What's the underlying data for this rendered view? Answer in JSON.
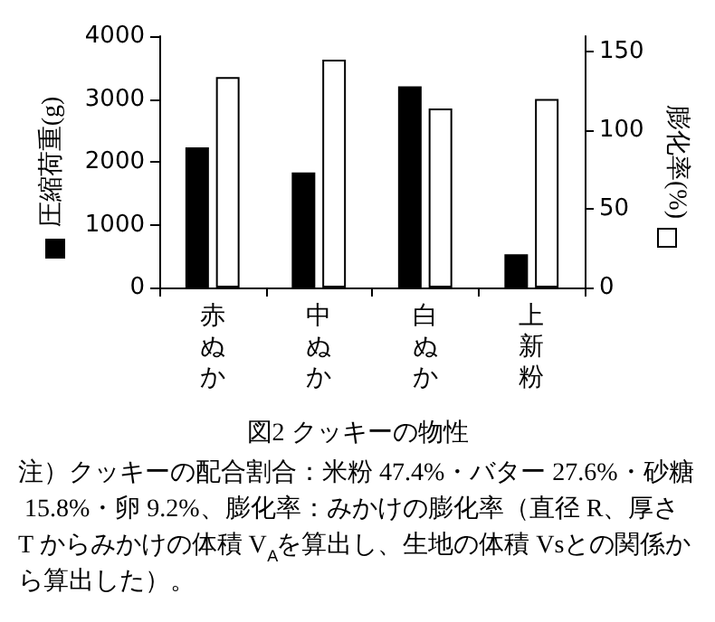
{
  "chart_data": {
    "type": "bar",
    "title": "図2 クッキーの物性",
    "categories": [
      "赤ぬか",
      "中ぬか",
      "白ぬか",
      "上新粉"
    ],
    "series": [
      {
        "color": "#000000",
        "values": [
          2230,
          1830,
          3200,
          530
        ]
      },
      {
        "color": "#ffffff",
        "values": [
          134,
          145,
          114,
          120
        ],
        "axis": "y2"
      }
    ],
    "ylabel": "圧縮荷重(g)",
    "y2label": "膨化率(%)",
    "ylim": [
      0,
      4000
    ],
    "yticks": [
      0,
      1000,
      2000,
      3000,
      4000
    ],
    "y2lim": [
      0,
      160
    ],
    "y2ticks": [
      0,
      50,
      100,
      150
    ],
    "grid": false,
    "annotations": [
      "注）クッキーの配合割合：米粉 47.4%・バター 27.6%・砂糖 15.8%・卵 9.2%、膨化率：みかけの膨化率（直径 R、厚さ T からみかけの体積 V$_{A}$を算出し、生地の体積 Vsとの関係から算出した）。"
    ]
  }
}
